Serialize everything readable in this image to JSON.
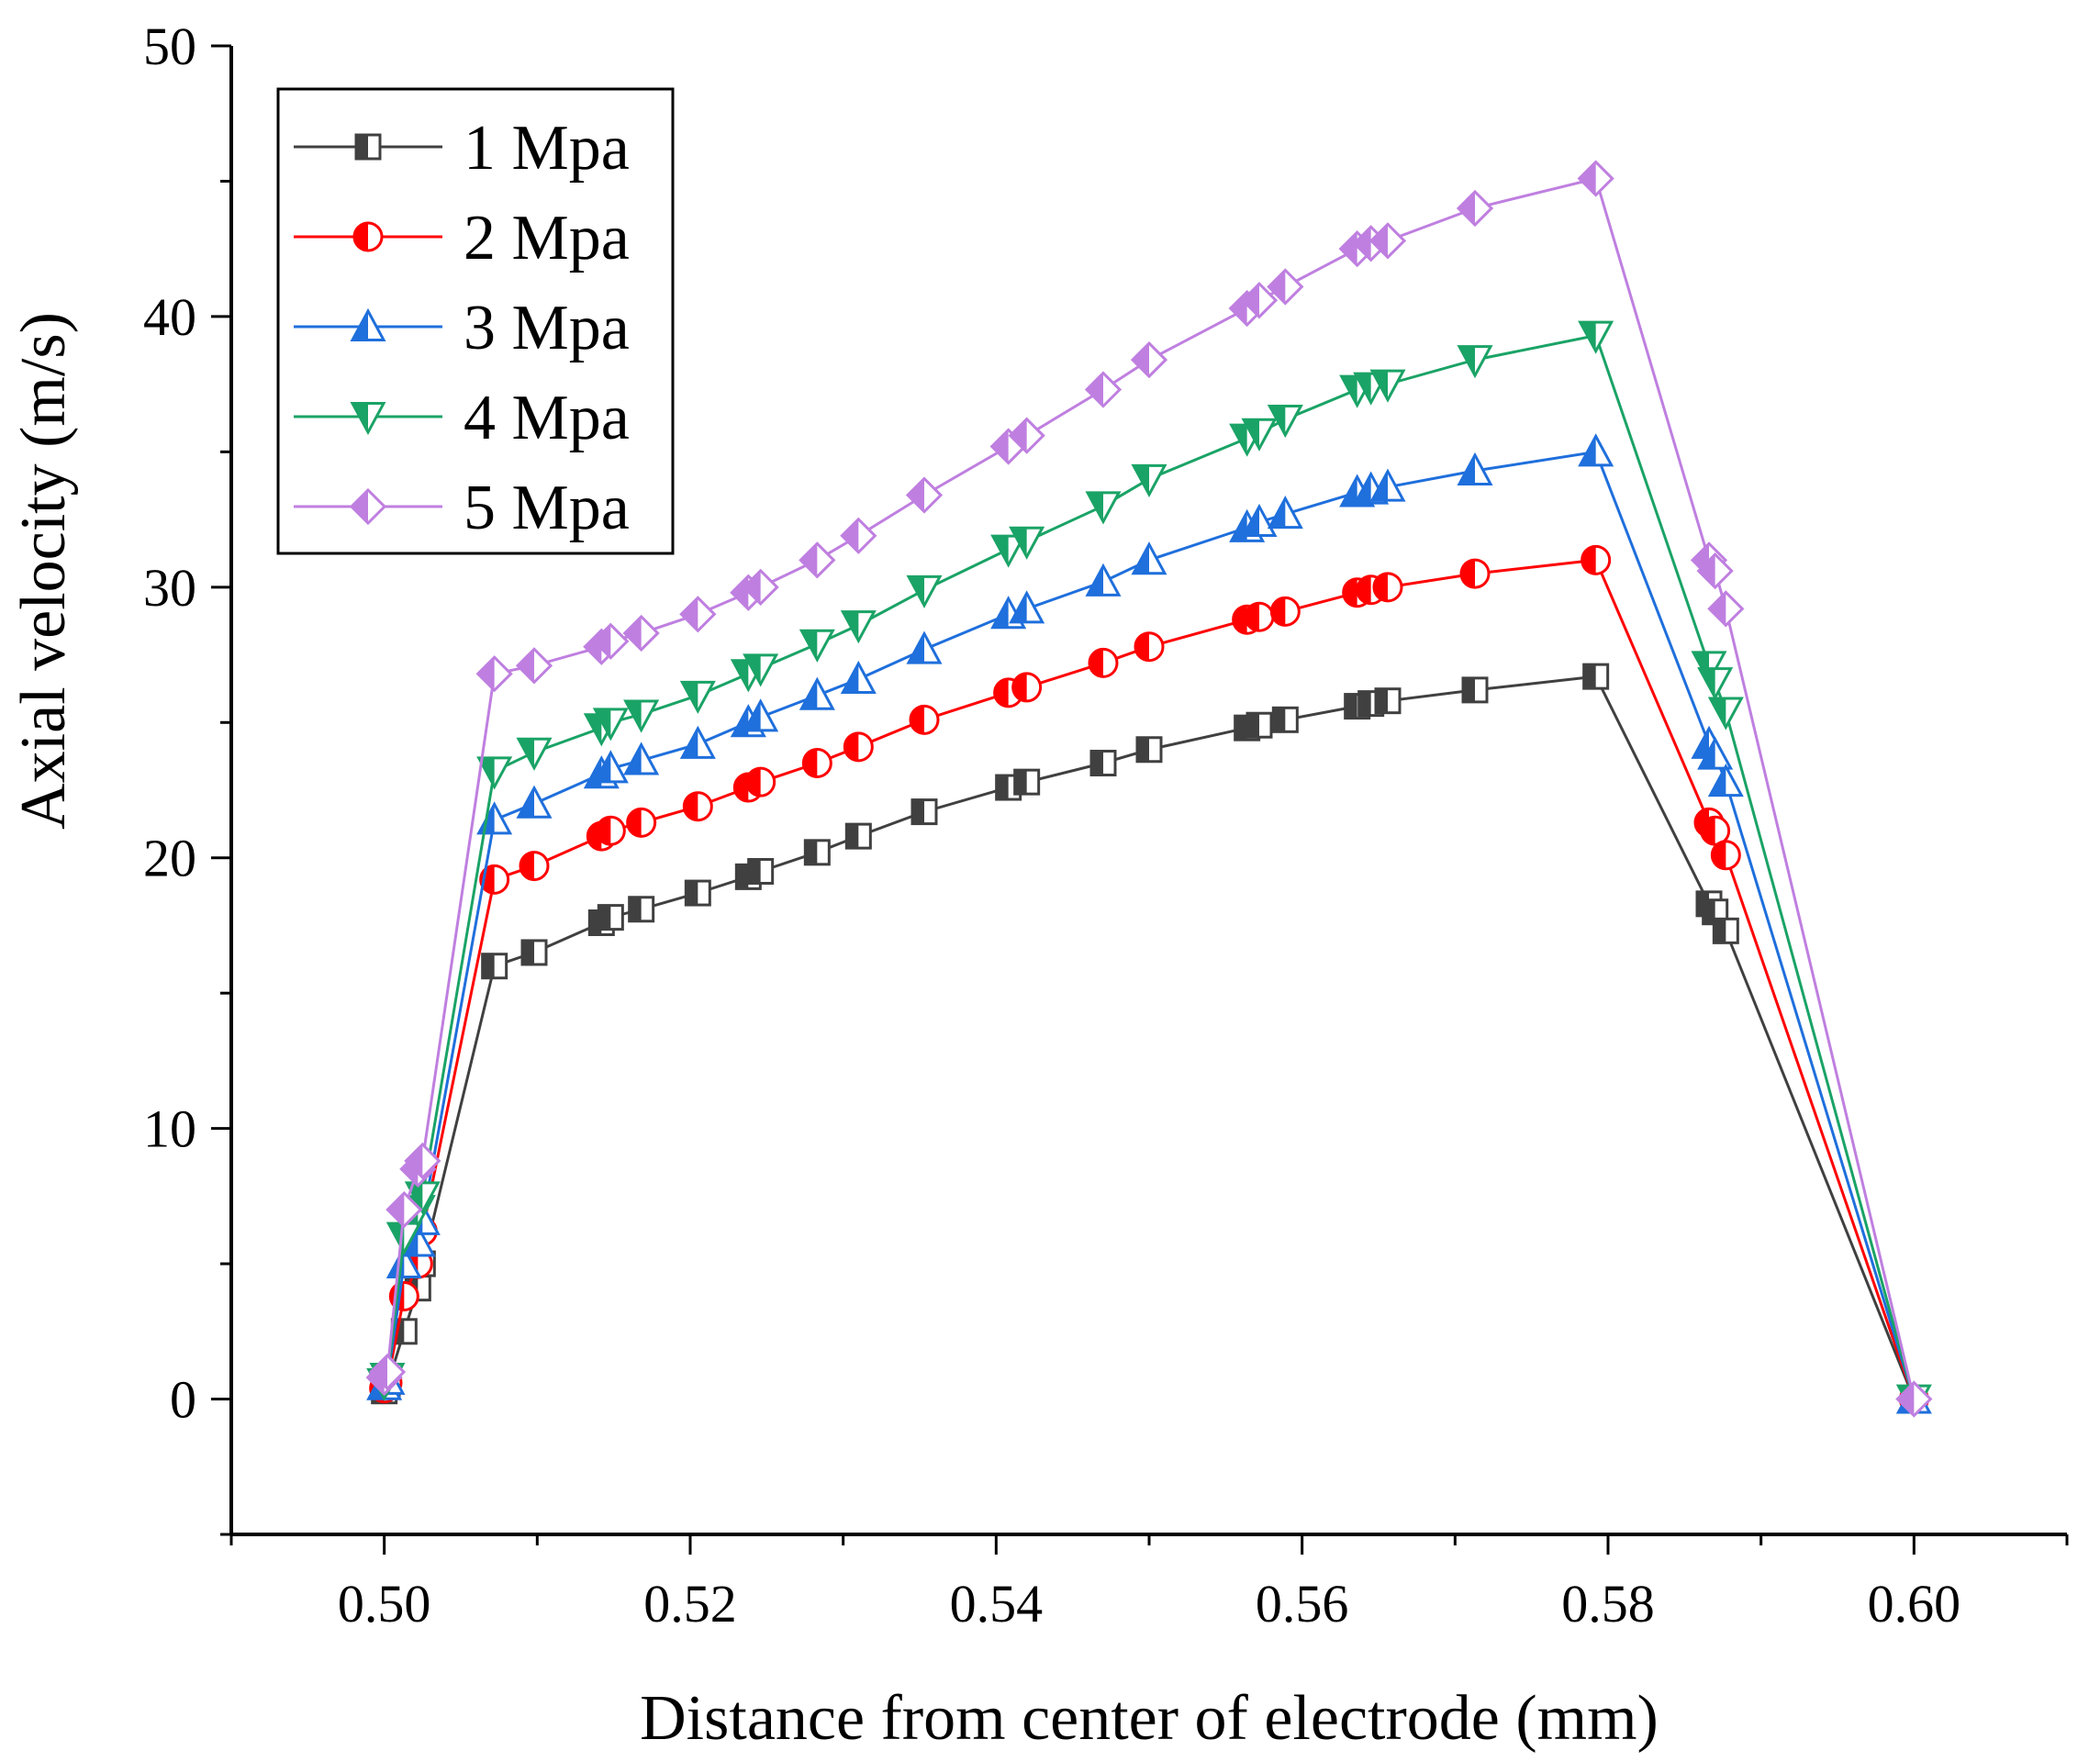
{
  "chart_data": {
    "type": "line",
    "xlabel": "Distance from center of electrode (mm)",
    "ylabel": "Axial velocity (m/s)",
    "xlim": [
      0.49,
      0.61
    ],
    "ylim": [
      -5,
      50
    ],
    "xticks": [
      0.5,
      0.52,
      0.54,
      0.56,
      0.58,
      0.6
    ],
    "xtick_labels": [
      "0.50",
      "0.52",
      "0.54",
      "0.56",
      "0.58",
      "0.60"
    ],
    "yticks": [
      0,
      10,
      20,
      30,
      40,
      50
    ],
    "ytick_labels": [
      "0",
      "10",
      "20",
      "30",
      "40",
      "50"
    ],
    "grid": false,
    "legend_position": "top-left",
    "x": [
      0.5,
      0.5002,
      0.5013,
      0.5022,
      0.5025,
      0.5072,
      0.5098,
      0.5142,
      0.5148,
      0.5168,
      0.5205,
      0.5238,
      0.5246,
      0.5283,
      0.531,
      0.5353,
      0.5408,
      0.542,
      0.547,
      0.55,
      0.5564,
      0.5572,
      0.5589,
      0.5636,
      0.5645,
      0.5656,
      0.5713,
      0.5792,
      0.5866,
      0.587,
      0.5877,
      0.6
    ],
    "series": [
      {
        "name": "1 Mpa",
        "color": "#404040",
        "marker": "square",
        "values": [
          0.3,
          0.5,
          2.5,
          4.1,
          5.0,
          16.0,
          16.5,
          17.6,
          17.8,
          18.1,
          18.7,
          19.3,
          19.5,
          20.2,
          20.8,
          21.7,
          22.6,
          22.8,
          23.5,
          24.0,
          24.8,
          24.9,
          25.1,
          25.6,
          25.7,
          25.8,
          26.2,
          26.7,
          18.3,
          18.0,
          17.3,
          0.0
        ]
      },
      {
        "name": "2 Mpa",
        "color": "#ff0000",
        "marker": "circle",
        "values": [
          0.4,
          0.6,
          3.8,
          5.0,
          6.2,
          19.2,
          19.7,
          20.8,
          21.0,
          21.3,
          21.9,
          22.6,
          22.8,
          23.5,
          24.1,
          25.1,
          26.1,
          26.3,
          27.2,
          27.8,
          28.8,
          28.9,
          29.1,
          29.8,
          29.9,
          30.0,
          30.5,
          31.0,
          21.3,
          21.0,
          20.1,
          0.0
        ]
      },
      {
        "name": "3 Mpa",
        "color": "#1f6fdc",
        "marker": "triangle-up",
        "values": [
          0.5,
          0.7,
          5.0,
          5.8,
          6.6,
          21.4,
          22.0,
          23.1,
          23.3,
          23.6,
          24.2,
          25.0,
          25.2,
          26.0,
          26.6,
          27.7,
          29.0,
          29.2,
          30.2,
          31.0,
          32.2,
          32.4,
          32.7,
          33.5,
          33.6,
          33.7,
          34.3,
          35.0,
          24.2,
          23.8,
          22.8,
          0.0
        ]
      },
      {
        "name": "4 Mpa",
        "color": "#1aa366",
        "marker": "triangle-down",
        "values": [
          0.6,
          0.8,
          6.0,
          7.0,
          7.5,
          23.2,
          23.9,
          24.8,
          25.0,
          25.3,
          26.0,
          26.8,
          27.0,
          27.9,
          28.6,
          29.9,
          31.4,
          31.7,
          33.0,
          34.0,
          35.5,
          35.7,
          36.2,
          37.3,
          37.4,
          37.5,
          38.4,
          39.3,
          27.1,
          26.5,
          25.4,
          0.0
        ]
      },
      {
        "name": "5 Mpa",
        "color": "#bf7fe0",
        "marker": "diamond",
        "values": [
          0.8,
          1.0,
          7.0,
          8.5,
          8.8,
          26.8,
          27.1,
          27.8,
          28.0,
          28.3,
          29.0,
          29.8,
          30.0,
          31.0,
          31.9,
          33.4,
          35.2,
          35.6,
          37.3,
          38.4,
          40.3,
          40.6,
          41.1,
          42.5,
          42.7,
          42.8,
          44.0,
          45.1,
          31.0,
          30.6,
          29.2,
          0.0
        ]
      }
    ]
  }
}
